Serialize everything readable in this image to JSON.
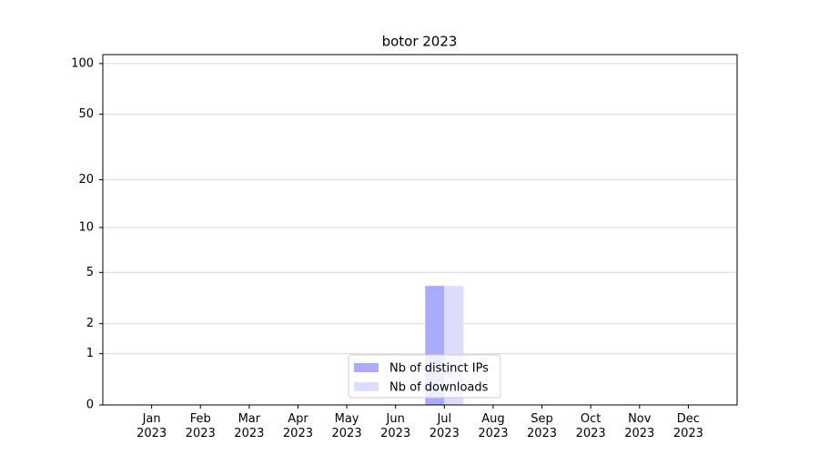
{
  "chart_data": {
    "type": "bar",
    "title": "botor 2023",
    "categories": [
      "Jan\n2023",
      "Feb\n2023",
      "Mar\n2023",
      "Apr\n2023",
      "May\n2023",
      "Jun\n2023",
      "Jul\n2023",
      "Aug\n2023",
      "Sep\n2023",
      "Oct\n2023",
      "Nov\n2023",
      "Dec\n2023"
    ],
    "series": [
      {
        "name": "Nb of distinct IPs",
        "color": "#aaaaff",
        "values": [
          0,
          0,
          0,
          0,
          0,
          0,
          4,
          0,
          0,
          0,
          0,
          0
        ]
      },
      {
        "name": "Nb of downloads",
        "color": "#ddddff",
        "values": [
          0,
          0,
          0,
          0,
          0,
          0,
          4,
          0,
          0,
          0,
          0,
          0
        ]
      }
    ],
    "yscale": "symlog",
    "ylim": [
      0,
      113
    ],
    "yticks": [
      0,
      1,
      2,
      5,
      10,
      20,
      50,
      100
    ],
    "grid": true,
    "legend": "lower center"
  }
}
